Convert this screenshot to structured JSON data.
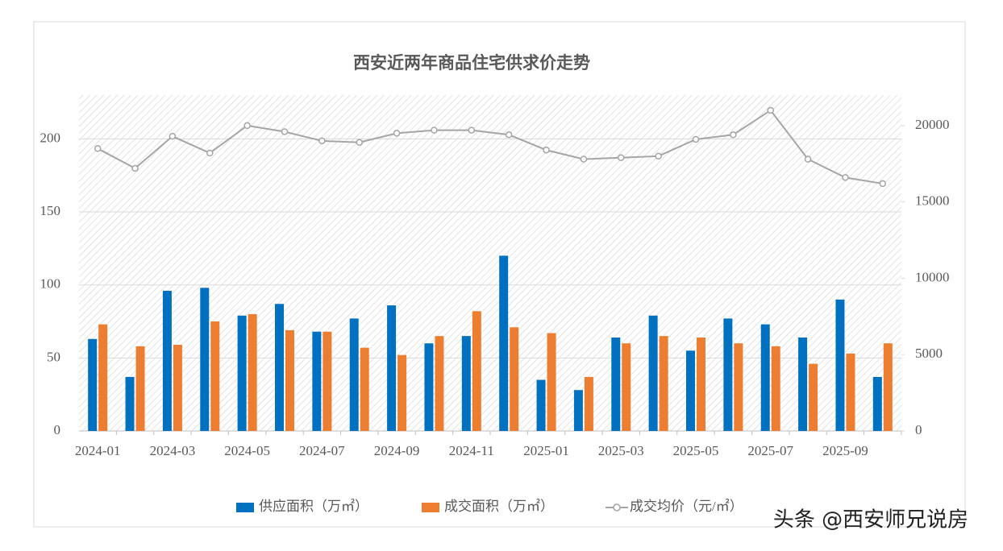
{
  "chart_data": {
    "type": "bar_line",
    "title": "西安近两年商品住宅供求价走势",
    "categories": [
      "2024-01",
      null,
      "2024-03",
      null,
      "2024-05",
      null,
      "2024-07",
      null,
      "2024-09",
      null,
      "2024-11",
      null,
      "2025-01",
      null,
      "2025-03",
      null,
      "2025-05",
      null,
      "2025-07",
      null,
      "2025-09",
      null
    ],
    "series": [
      {
        "name": "供应面积（万㎡）",
        "color": "#0070c0",
        "kind": "bar",
        "values": [
          63,
          37,
          96,
          98,
          79,
          87,
          68,
          77,
          86,
          60,
          65,
          120,
          35,
          28,
          64,
          79,
          55,
          77,
          73,
          64,
          90,
          37
        ]
      },
      {
        "name": "成交面积（万㎡）",
        "color": "#ed7d31",
        "kind": "bar",
        "values": [
          73,
          58,
          59,
          75,
          80,
          69,
          68,
          57,
          52,
          65,
          82,
          71,
          67,
          37,
          60,
          65,
          64,
          60,
          58,
          46,
          53,
          60
        ]
      },
      {
        "name": "成交均价（元/㎡）",
        "color": "#a5a5a5",
        "kind": "line",
        "axis": "y2",
        "values": [
          18500,
          17200,
          19300,
          18200,
          20000,
          19600,
          19000,
          18900,
          19500,
          19700,
          19700,
          19400,
          18400,
          17800,
          17900,
          18000,
          19100,
          19400,
          21000,
          17800,
          16600,
          16200
        ]
      }
    ],
    "ylim": [
      0,
      230
    ],
    "yticks": [
      0,
      50,
      100,
      150,
      200
    ],
    "y2lim": [
      0,
      22000
    ],
    "y2ticks": [
      0,
      5000,
      10000,
      15000,
      20000
    ],
    "grid": true,
    "legend": "bottom"
  },
  "watermark": "头条 @西安师兄说房"
}
